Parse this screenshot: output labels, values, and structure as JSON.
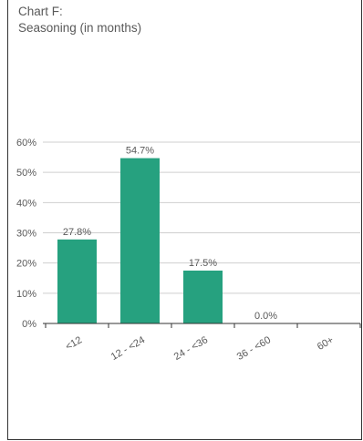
{
  "chart_data": {
    "type": "bar",
    "title_lines": [
      "Chart F:",
      "Seasoning (in months)"
    ],
    "categories": [
      "<12",
      "12 - <24",
      "24 - <36",
      "36 - <60",
      "60+"
    ],
    "values": [
      27.8,
      54.7,
      17.5,
      0.0,
      null
    ],
    "data_labels": [
      "27.8%",
      "54.7%",
      "17.5%",
      "0.0%",
      ""
    ],
    "ylim": [
      0,
      60
    ],
    "yticks": [
      0,
      10,
      20,
      30,
      40,
      50,
      60
    ],
    "ytick_labels": [
      "0%",
      "10%",
      "20%",
      "30%",
      "40%",
      "50%",
      "60%"
    ],
    "grid": true,
    "legend": "none",
    "bar_color": "#26a17f",
    "grid_color": "#cfcfcf",
    "text_color": "#595959"
  }
}
